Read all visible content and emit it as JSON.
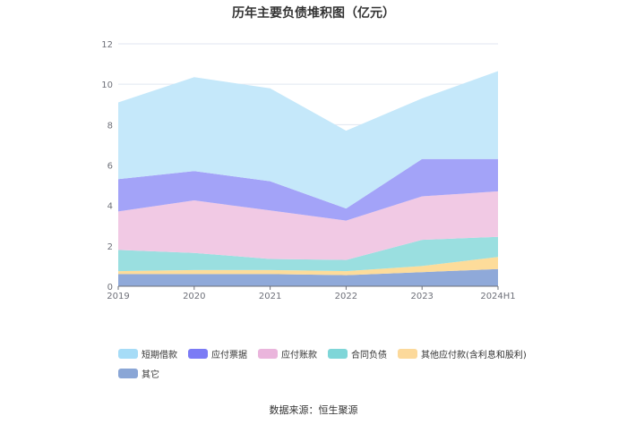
{
  "chart_data": {
    "type": "area",
    "stacked": true,
    "title": "历年主要负债堆积图（亿元）",
    "x": [
      "2019",
      "2020",
      "2021",
      "2022",
      "2023",
      "2024H1"
    ],
    "ylim": [
      0,
      12
    ],
    "yticks": [
      "0",
      "2",
      "4",
      "6",
      "8",
      "10",
      "12"
    ],
    "grid": true,
    "legend_position": "bottom",
    "series": [
      {
        "name": "其它",
        "color": "#8fa9d9",
        "values": [
          0.6,
          0.6,
          0.6,
          0.55,
          0.7,
          0.85
        ]
      },
      {
        "name": "其他应付款(含利息和股利)",
        "color": "#fddc9a",
        "values": [
          0.15,
          0.2,
          0.2,
          0.2,
          0.3,
          0.6
        ]
      },
      {
        "name": "合同负债",
        "color": "#9adfe0",
        "values": [
          1.05,
          0.85,
          0.55,
          0.55,
          1.3,
          1.0
        ]
      },
      {
        "name": "应付账款",
        "color": "#f1c9e4",
        "values": [
          1.9,
          2.6,
          2.4,
          1.95,
          2.15,
          2.25
        ]
      },
      {
        "name": "应付票据",
        "color": "#a3a3f8",
        "values": [
          1.6,
          1.45,
          1.45,
          0.6,
          1.85,
          1.6
        ]
      },
      {
        "name": "短期借款",
        "color": "#c5e8fa",
        "values": [
          3.8,
          4.65,
          4.6,
          3.85,
          3.0,
          4.35
        ]
      }
    ]
  },
  "legend_order": [
    "短期借款",
    "应付票据",
    "应付账款",
    "合同负债",
    "其他应付款(含利息和股利)",
    "其它"
  ],
  "legend_colors": [
    "#a6dcf7",
    "#7b7bf5",
    "#eab5dc",
    "#7fd6d8",
    "#fcd99b",
    "#8aa6d6"
  ],
  "source": "数据来源：恒生聚源"
}
